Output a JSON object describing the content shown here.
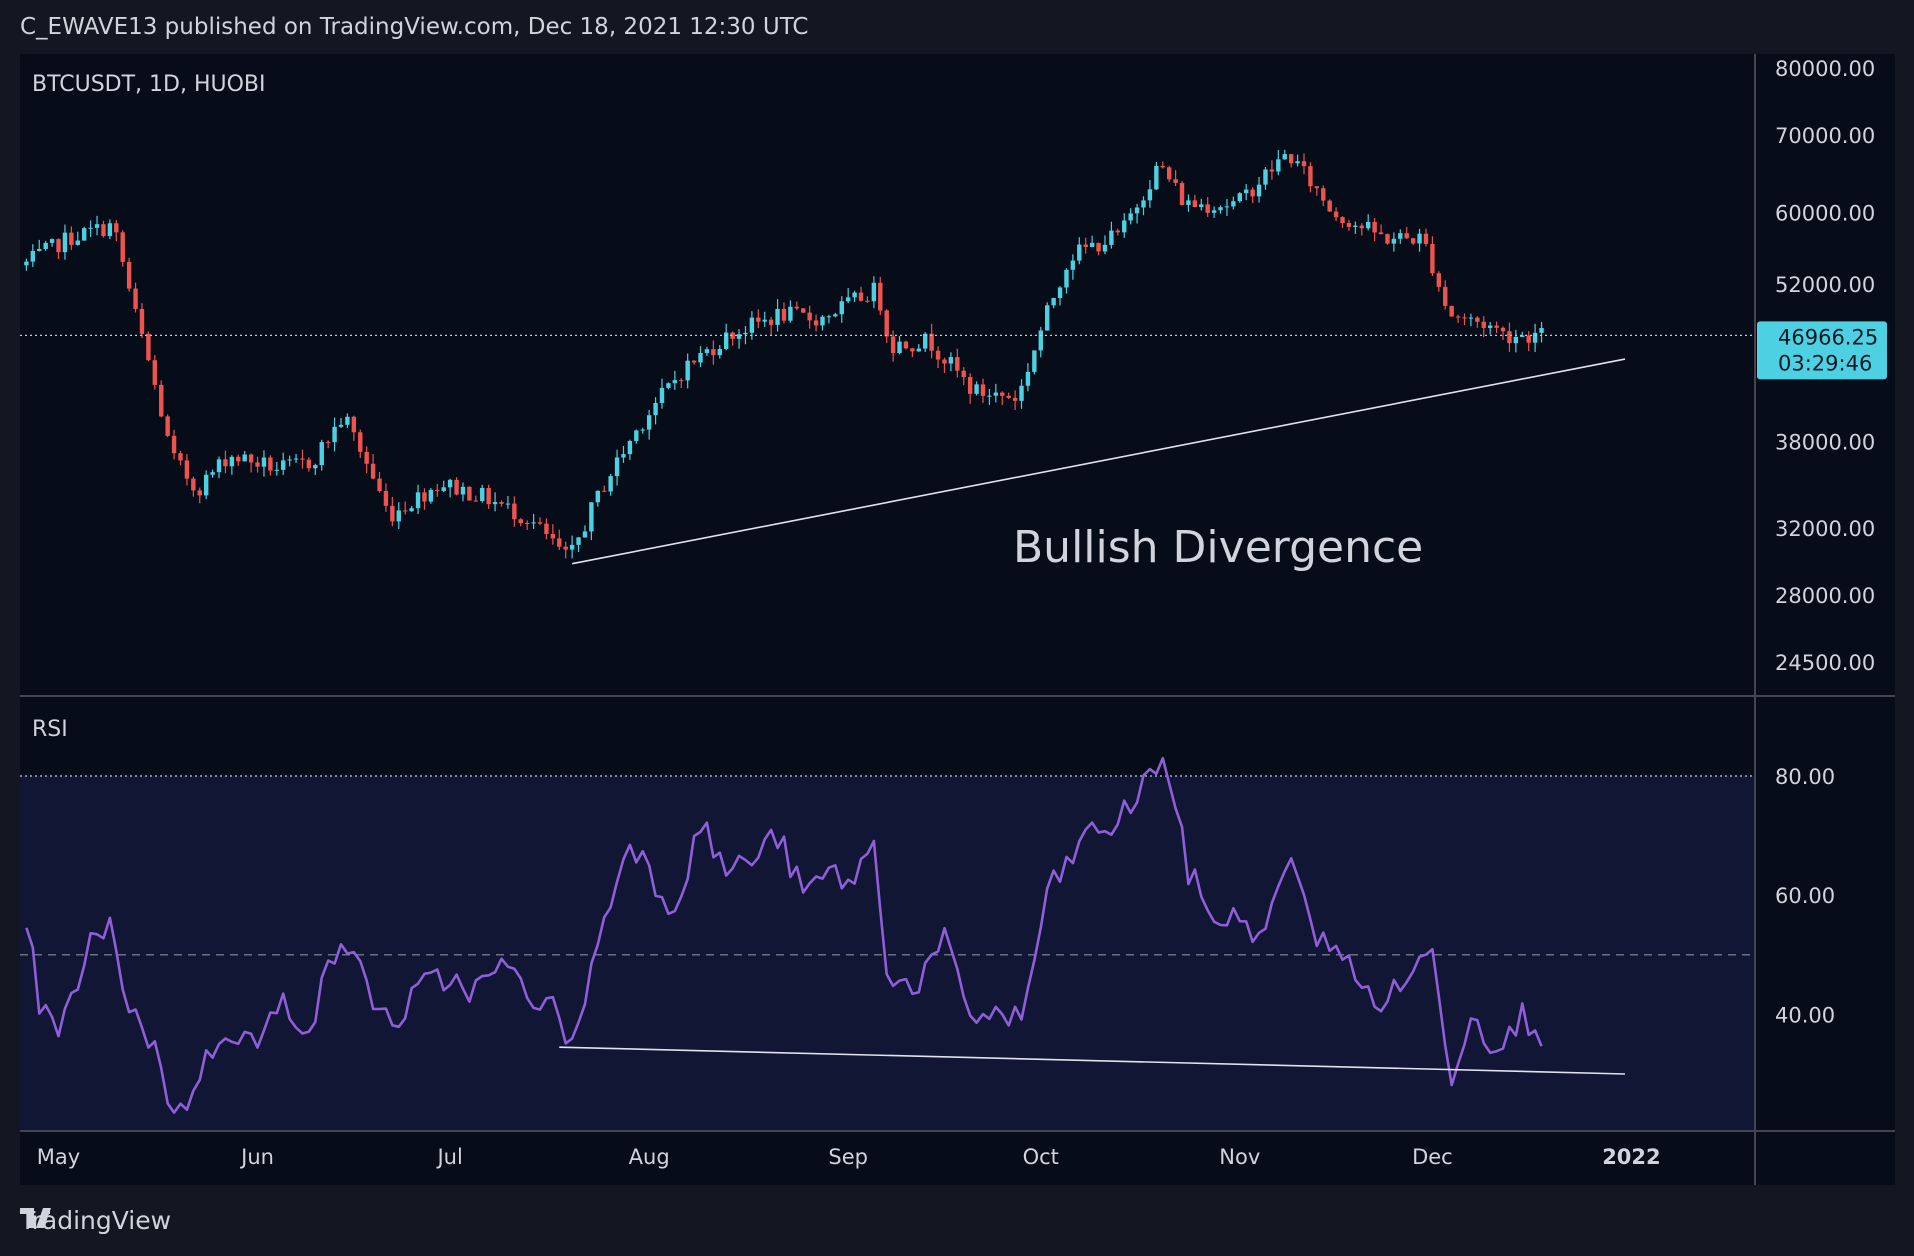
{
  "header": {
    "text": "C_EWAVE13 published on TradingView.com, Dec 18, 2021 12:30 UTC"
  },
  "footer": {
    "brand": "TradingView",
    "logo_icon": "tradingview-logo-icon"
  },
  "colors": {
    "background": "#060d18",
    "up": "#4dd0e1",
    "down": "#ef5350",
    "rsi_line": "#8e5fd8",
    "rsi_band": "#111634",
    "price_label_bg": "#4dd0e1",
    "annotation": "#d1d4dc"
  },
  "price_pane": {
    "title": "BTCUSDT, 1D, HUOBI",
    "y_ticks": [
      "80000.00",
      "70000.00",
      "60000.00",
      "52000.00",
      "38000.00",
      "32000.00",
      "28000.00",
      "24500.00"
    ],
    "last_price": "46966.25",
    "countdown": "03:29:46",
    "annotation": "Bullish Divergence"
  },
  "rsi_pane": {
    "title": "RSI",
    "y_ticks": [
      "80.00",
      "60.00",
      "40.00"
    ]
  },
  "x_axis": {
    "labels": [
      "May",
      "Jun",
      "Jul",
      "Aug",
      "Sep",
      "Oct",
      "Nov",
      "Dec",
      "2022"
    ]
  },
  "chart_data": [
    {
      "type": "candlestick",
      "title": "BTCUSDT, 1D, HUOBI",
      "scale": "log",
      "x_range": [
        "2021-04-26",
        "2021-12-18"
      ],
      "ylim": [
        24500,
        80000
      ],
      "last_price": 46966.25,
      "anchors": [
        [
          "2021-04-26",
          54000
        ],
        [
          "2021-05-03",
          57000
        ],
        [
          "2021-05-10",
          58500
        ],
        [
          "2021-05-13",
          50000
        ],
        [
          "2021-05-19",
          37000
        ],
        [
          "2021-05-23",
          34500
        ],
        [
          "2021-05-28",
          37000
        ],
        [
          "2021-06-05",
          36000
        ],
        [
          "2021-06-10",
          36500
        ],
        [
          "2021-06-15",
          40000
        ],
        [
          "2021-06-22",
          32800
        ],
        [
          "2021-06-30",
          35000
        ],
        [
          "2021-07-07",
          34000
        ],
        [
          "2021-07-14",
          32500
        ],
        [
          "2021-07-20",
          30000
        ],
        [
          "2021-07-25",
          34500
        ],
        [
          "2021-08-01",
          40000
        ],
        [
          "2021-08-07",
          44000
        ],
        [
          "2021-08-14",
          47000
        ],
        [
          "2021-08-22",
          49000
        ],
        [
          "2021-08-28",
          48500
        ],
        [
          "2021-09-06",
          51500
        ],
        [
          "2021-09-08",
          46000
        ],
        [
          "2021-09-14",
          46500
        ],
        [
          "2021-09-21",
          42000
        ],
        [
          "2021-09-28",
          41500
        ],
        [
          "2021-10-06",
          55000
        ],
        [
          "2021-10-14",
          57500
        ],
        [
          "2021-10-20",
          66000
        ],
        [
          "2021-10-24",
          61000
        ],
        [
          "2021-11-01",
          61000
        ],
        [
          "2021-11-09",
          67500
        ],
        [
          "2021-11-16",
          60000
        ],
        [
          "2021-11-24",
          57000
        ],
        [
          "2021-11-30",
          57000
        ],
        [
          "2021-12-04",
          49000
        ],
        [
          "2021-12-10",
          48000
        ],
        [
          "2021-12-13",
          47000
        ],
        [
          "2021-12-18",
          46966
        ]
      ],
      "trendline": [
        [
          "2021-07-20",
          29800
        ],
        [
          "2021-12-04",
          42000
        ],
        [
          "2021-12-31",
          44800
        ]
      ]
    },
    {
      "type": "line",
      "title": "RSI",
      "x_range": [
        "2021-04-26",
        "2021-12-18"
      ],
      "ylim": [
        15,
        90
      ],
      "reference_lines": [
        80,
        50
      ],
      "anchors": [
        [
          "2021-04-26",
          56
        ],
        [
          "2021-04-28",
          42
        ],
        [
          "2021-05-01",
          36
        ],
        [
          "2021-05-06",
          52
        ],
        [
          "2021-05-09",
          54
        ],
        [
          "2021-05-12",
          42
        ],
        [
          "2021-05-17",
          32
        ],
        [
          "2021-05-19",
          22
        ],
        [
          "2021-05-23",
          30
        ],
        [
          "2021-05-27",
          38
        ],
        [
          "2021-06-01",
          35
        ],
        [
          "2021-06-05",
          42
        ],
        [
          "2021-06-09",
          38
        ],
        [
          "2021-06-14",
          53
        ],
        [
          "2021-06-19",
          43
        ],
        [
          "2021-06-22",
          38
        ],
        [
          "2021-06-27",
          45
        ],
        [
          "2021-07-01",
          46
        ],
        [
          "2021-07-05",
          44
        ],
        [
          "2021-07-09",
          48
        ],
        [
          "2021-07-13",
          44
        ],
        [
          "2021-07-18",
          40
        ],
        [
          "2021-07-20",
          34
        ],
        [
          "2021-07-23",
          48
        ],
        [
          "2021-07-29",
          70
        ],
        [
          "2021-08-02",
          62
        ],
        [
          "2021-08-05",
          58
        ],
        [
          "2021-08-09",
          72
        ],
        [
          "2021-08-13",
          64
        ],
        [
          "2021-08-17",
          66
        ],
        [
          "2021-08-21",
          70
        ],
        [
          "2021-08-25",
          60
        ],
        [
          "2021-08-29",
          64
        ],
        [
          "2021-09-01",
          62
        ],
        [
          "2021-09-05",
          68
        ],
        [
          "2021-09-07",
          48
        ],
        [
          "2021-09-11",
          44
        ],
        [
          "2021-09-16",
          52
        ],
        [
          "2021-09-20",
          40
        ],
        [
          "2021-09-24",
          40
        ],
        [
          "2021-09-28",
          39
        ],
        [
          "2021-10-02",
          60
        ],
        [
          "2021-10-08",
          70
        ],
        [
          "2021-10-13",
          72
        ],
        [
          "2021-10-18",
          80
        ],
        [
          "2021-10-20",
          84
        ],
        [
          "2021-10-24",
          64
        ],
        [
          "2021-10-28",
          56
        ],
        [
          "2021-11-01",
          56
        ],
        [
          "2021-11-05",
          53
        ],
        [
          "2021-11-09",
          68
        ],
        [
          "2021-11-12",
          54
        ],
        [
          "2021-11-16",
          52
        ],
        [
          "2021-11-20",
          44
        ],
        [
          "2021-11-24",
          42
        ],
        [
          "2021-11-28",
          48
        ],
        [
          "2021-12-01",
          50
        ],
        [
          "2021-12-04",
          30
        ],
        [
          "2021-12-07",
          40
        ],
        [
          "2021-12-10",
          36
        ],
        [
          "2021-12-13",
          36
        ],
        [
          "2021-12-15",
          40
        ],
        [
          "2021-12-18",
          37
        ]
      ],
      "trendline": [
        [
          "2021-07-18",
          34.5
        ],
        [
          "2021-12-04",
          30.6
        ],
        [
          "2021-12-31",
          30.0
        ]
      ]
    }
  ]
}
